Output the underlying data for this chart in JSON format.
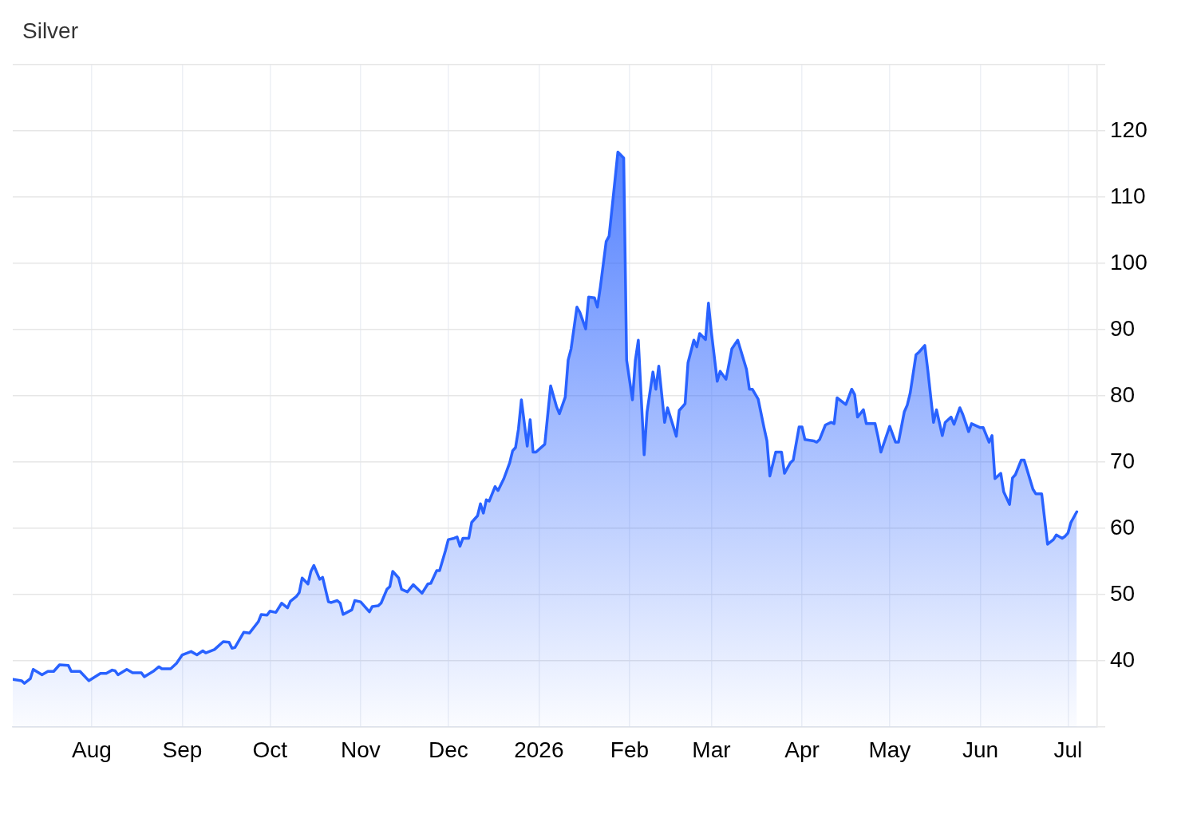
{
  "chart_data": {
    "type": "area",
    "title": "Silver",
    "color": "#2962ff",
    "x": [
      "2025-07-05",
      "2025-07-08",
      "2025-07-09",
      "2025-07-11",
      "2025-07-12",
      "2025-07-15",
      "2025-07-17",
      "2025-07-19",
      "2025-07-21",
      "2025-07-24",
      "2025-07-25",
      "2025-07-28",
      "2025-07-31",
      "2025-08-04",
      "2025-08-06",
      "2025-08-08",
      "2025-08-09",
      "2025-08-10",
      "2025-08-13",
      "2025-08-15",
      "2025-08-18",
      "2025-08-19",
      "2025-08-22",
      "2025-08-24",
      "2025-08-25",
      "2025-08-28",
      "2025-08-30",
      "2025-09-01",
      "2025-09-04",
      "2025-09-06",
      "2025-09-08",
      "2025-09-09",
      "2025-09-12",
      "2025-09-15",
      "2025-09-17",
      "2025-09-18",
      "2025-09-19",
      "2025-09-22",
      "2025-09-24",
      "2025-09-27",
      "2025-09-28",
      "2025-09-30",
      "2025-10-01",
      "2025-10-03",
      "2025-10-05",
      "2025-10-07",
      "2025-10-08",
      "2025-10-10",
      "2025-10-11",
      "2025-10-12",
      "2025-10-14",
      "2025-10-15",
      "2025-10-16",
      "2025-10-18",
      "2025-10-19",
      "2025-10-21",
      "2025-10-22",
      "2025-10-24",
      "2025-10-25",
      "2025-10-26",
      "2025-10-29",
      "2025-10-30",
      "2025-11-01",
      "2025-11-04",
      "2025-11-05",
      "2025-11-07",
      "2025-11-08",
      "2025-11-10",
      "2025-11-11",
      "2025-11-12",
      "2025-11-14",
      "2025-11-15",
      "2025-11-17",
      "2025-11-19",
      "2025-11-22",
      "2025-11-24",
      "2025-11-25",
      "2025-11-27",
      "2025-11-28",
      "2025-11-30",
      "2025-12-01",
      "2025-12-03",
      "2025-12-04",
      "2025-12-05",
      "2025-12-06",
      "2025-12-08",
      "2025-12-09",
      "2025-12-11",
      "2025-12-12",
      "2025-12-13",
      "2025-12-14",
      "2025-12-15",
      "2025-12-17",
      "2025-12-18",
      "2025-12-20",
      "2025-12-22",
      "2025-12-23",
      "2025-12-24",
      "2025-12-25",
      "2025-12-26",
      "2025-12-28",
      "2025-12-29",
      "2025-12-30",
      "2025-12-31",
      "2026-01-03",
      "2026-01-05",
      "2026-01-07",
      "2026-01-08",
      "2026-01-10",
      "2026-01-11",
      "2026-01-12",
      "2026-01-14",
      "2026-01-15",
      "2026-01-17",
      "2026-01-18",
      "2026-01-20",
      "2026-01-21",
      "2026-01-22",
      "2026-01-24",
      "2026-01-25",
      "2026-01-27",
      "2026-01-28",
      "2026-01-30",
      "2026-01-31",
      "2026-02-02",
      "2026-02-03",
      "2026-02-04",
      "2026-02-06",
      "2026-02-07",
      "2026-02-09",
      "2026-02-10",
      "2026-02-11",
      "2026-02-13",
      "2026-02-14",
      "2026-02-17",
      "2026-02-18",
      "2026-02-20",
      "2026-02-21",
      "2026-02-23",
      "2026-02-24",
      "2026-02-25",
      "2026-02-27",
      "2026-02-28",
      "2026-03-01",
      "2026-03-03",
      "2026-03-04",
      "2026-03-06",
      "2026-03-08",
      "2026-03-10",
      "2026-03-13",
      "2026-03-14",
      "2026-03-15",
      "2026-03-17",
      "2026-03-19",
      "2026-03-20",
      "2026-03-21",
      "2026-03-23",
      "2026-03-25",
      "2026-03-26",
      "2026-03-28",
      "2026-03-29",
      "2026-03-31",
      "2026-04-01",
      "2026-04-02",
      "2026-04-05",
      "2026-04-06",
      "2026-04-07",
      "2026-04-09",
      "2026-04-11",
      "2026-04-12",
      "2026-04-13",
      "2026-04-16",
      "2026-04-18",
      "2026-04-19",
      "2026-04-20",
      "2026-04-22",
      "2026-04-23",
      "2026-04-26",
      "2026-04-27",
      "2026-04-28",
      "2026-05-01",
      "2026-05-03",
      "2026-05-04",
      "2026-05-06",
      "2026-05-07",
      "2026-05-08",
      "2026-05-10",
      "2026-05-11",
      "2026-05-13",
      "2026-05-14",
      "2026-05-16",
      "2026-05-17",
      "2026-05-19",
      "2026-05-20",
      "2026-05-22",
      "2026-05-23",
      "2026-05-25",
      "2026-05-26",
      "2026-05-28",
      "2026-05-29",
      "2026-06-01",
      "2026-06-02",
      "2026-06-04",
      "2026-06-05",
      "2026-06-06",
      "2026-06-08",
      "2026-06-09",
      "2026-06-11",
      "2026-06-12",
      "2026-06-13",
      "2026-06-15",
      "2026-06-16",
      "2026-06-19",
      "2026-06-20",
      "2026-06-22",
      "2026-06-24",
      "2026-06-26",
      "2026-06-27",
      "2026-06-29",
      "2026-06-30",
      "2026-07-01",
      "2026-07-02",
      "2026-07-04"
    ],
    "values": [
      37.2,
      37.0,
      36.6,
      37.3,
      38.7,
      37.9,
      38.4,
      38.4,
      39.4,
      39.3,
      38.4,
      38.4,
      37.0,
      38.1,
      38.1,
      38.6,
      38.5,
      37.9,
      38.7,
      38.2,
      38.2,
      37.6,
      38.4,
      39.1,
      38.8,
      38.8,
      39.6,
      40.9,
      41.4,
      40.9,
      41.5,
      41.2,
      41.7,
      42.9,
      42.8,
      41.9,
      42.0,
      44.3,
      44.2,
      45.9,
      47.0,
      46.9,
      47.5,
      47.3,
      48.7,
      48.0,
      49.0,
      49.7,
      50.3,
      52.5,
      51.6,
      53.5,
      54.4,
      52.3,
      52.6,
      48.9,
      48.8,
      49.1,
      48.7,
      47.0,
      47.7,
      49.1,
      48.9,
      47.4,
      48.2,
      48.3,
      48.7,
      50.8,
      51.2,
      53.5,
      52.5,
      50.8,
      50.4,
      51.5,
      50.2,
      51.6,
      51.7,
      53.6,
      53.6,
      56.6,
      58.3,
      58.5,
      58.7,
      57.3,
      58.5,
      58.5,
      60.9,
      61.9,
      63.7,
      62.3,
      64.3,
      64.1,
      66.3,
      65.7,
      67.5,
      69.9,
      71.7,
      72.2,
      75.0,
      79.4,
      72.4,
      76.4,
      71.5,
      71.5,
      72.7,
      81.5,
      78.4,
      77.3,
      79.8,
      85.4,
      87.1,
      93.4,
      92.6,
      90.1,
      94.9,
      94.8,
      93.4,
      96.4,
      103.3,
      104.1,
      112.5,
      116.8,
      115.9,
      85.4,
      79.4,
      85.4,
      88.4,
      71.1,
      77.6,
      83.6,
      81.0,
      84.5,
      76.0,
      78.2,
      73.9,
      77.8,
      78.8,
      85.0,
      88.4,
      87.4,
      89.4,
      88.5,
      94.0,
      89.6,
      82.2,
      83.7,
      82.5,
      87.1,
      88.4,
      84.0,
      81.0,
      81.0,
      79.5,
      75.2,
      73.2,
      67.9,
      71.5,
      71.5,
      68.3,
      69.9,
      70.3,
      75.3,
      75.3,
      73.4,
      73.2,
      73.0,
      73.4,
      75.6,
      76.0,
      75.8,
      79.7,
      78.7,
      81.0,
      80.2,
      76.8,
      77.9,
      75.8,
      75.8,
      73.8,
      71.5,
      75.4,
      73.0,
      73.0,
      77.6,
      78.6,
      80.4,
      86.2,
      86.6,
      87.6,
      84.0,
      76.0,
      77.9,
      74.0,
      76.0,
      76.8,
      75.7,
      78.2,
      77.2,
      74.6,
      75.8,
      75.2,
      75.2,
      73.0,
      74.0,
      67.5,
      68.3,
      65.5,
      63.6,
      67.6,
      68.1,
      70.3,
      70.3,
      65.9,
      65.2,
      65.2,
      57.6,
      58.3,
      59.0,
      58.5,
      58.8,
      59.3,
      60.9,
      62.5
    ],
    "xlim": [
      "2025-07-05",
      "2026-07-11"
    ],
    "xticks": [
      {
        "value": "2025-08-01",
        "label": "Aug"
      },
      {
        "value": "2025-09-01",
        "label": "Sep"
      },
      {
        "value": "2025-10-01",
        "label": "Oct"
      },
      {
        "value": "2025-11-01",
        "label": "Nov"
      },
      {
        "value": "2025-12-01",
        "label": "Dec"
      },
      {
        "value": "2026-01-01",
        "label": "2026"
      },
      {
        "value": "2026-02-01",
        "label": "Feb"
      },
      {
        "value": "2026-03-01",
        "label": "Mar"
      },
      {
        "value": "2026-04-01",
        "label": "Apr"
      },
      {
        "value": "2026-05-01",
        "label": "May"
      },
      {
        "value": "2026-06-01",
        "label": "Jun"
      },
      {
        "value": "2026-07-01",
        "label": "Jul"
      }
    ],
    "ylim": [
      30,
      130
    ],
    "yticks": [
      {
        "value": 30,
        "label": null
      },
      40,
      50,
      60,
      70,
      80,
      90,
      100,
      110,
      120,
      {
        "value": 130,
        "label": null
      }
    ],
    "grid": true
  }
}
